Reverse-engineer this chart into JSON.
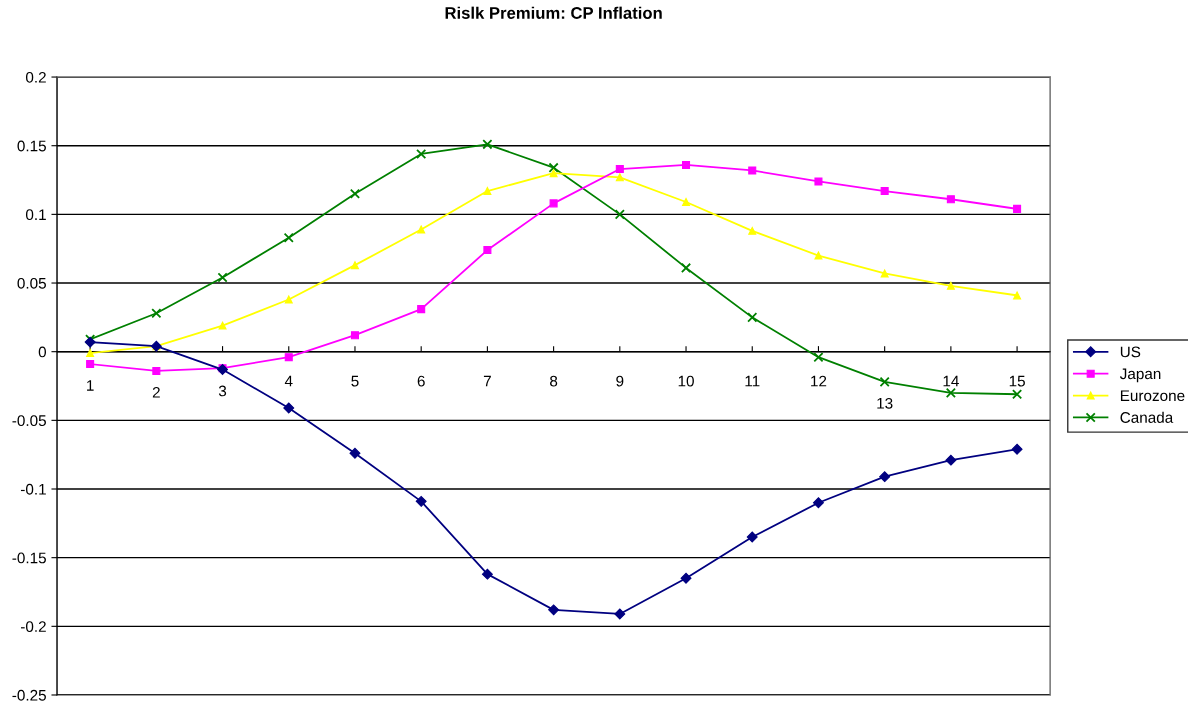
{
  "chart_data": {
    "type": "line",
    "title": "Rislk Premium: CP Inflation",
    "categories": [
      "1",
      "2",
      "3",
      "4",
      "5",
      "6",
      "7",
      "8",
      "9",
      "10",
      "11",
      "12",
      "13",
      "14",
      "15"
    ],
    "series": [
      {
        "name": "US",
        "color": "#000080",
        "marker": "diamond",
        "values": [
          0.007,
          0.004,
          -0.013,
          -0.041,
          -0.074,
          -0.109,
          -0.162,
          -0.188,
          -0.191,
          -0.165,
          -0.135,
          -0.11,
          -0.091,
          -0.079,
          -0.071
        ]
      },
      {
        "name": "Japan",
        "color": "#ff00ff",
        "marker": "square",
        "values": [
          -0.009,
          -0.014,
          -0.012,
          -0.004,
          0.012,
          0.031,
          0.074,
          0.108,
          0.133,
          0.136,
          0.132,
          0.124,
          0.117,
          0.111,
          0.104
        ]
      },
      {
        "name": "Eurozone",
        "color": "#ffff00",
        "marker": "triangle",
        "values": [
          -0.001,
          0.004,
          0.019,
          0.038,
          0.063,
          0.089,
          0.117,
          0.13,
          0.127,
          0.109,
          0.088,
          0.07,
          0.057,
          0.048,
          0.041
        ]
      },
      {
        "name": "Canada",
        "color": "#008000",
        "marker": "cross",
        "values": [
          0.009,
          0.028,
          0.054,
          0.083,
          0.115,
          0.144,
          0.151,
          0.134,
          0.1,
          0.061,
          0.025,
          -0.004,
          -0.022,
          -0.03,
          -0.031
        ]
      }
    ],
    "ylim": [
      -0.25,
      0.2
    ],
    "yticks": [
      -0.25,
      -0.2,
      -0.15,
      -0.1,
      -0.05,
      0,
      0.05,
      0.1,
      0.15,
      0.2
    ],
    "grid": "y",
    "legend": "right",
    "line_style": "solid"
  }
}
